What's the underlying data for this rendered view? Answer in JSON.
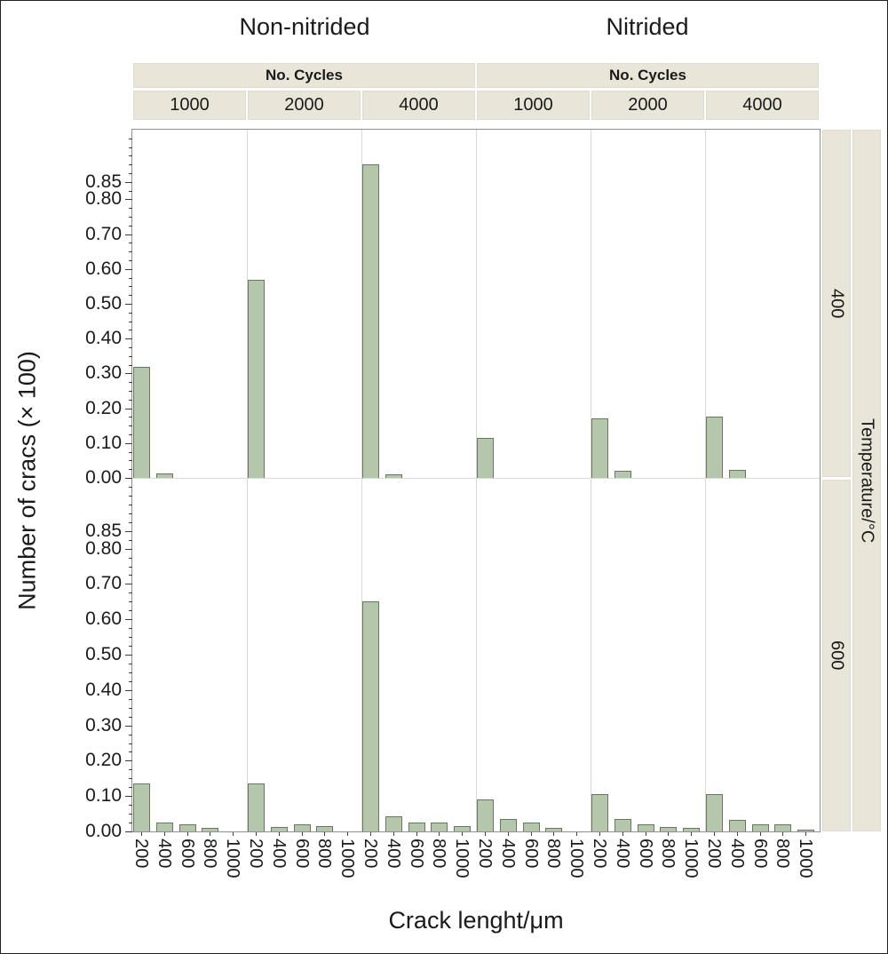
{
  "chart_data": {
    "type": "bar",
    "facet_col_groups": [
      "Non-nitrided",
      "Nitrided"
    ],
    "col_header_label": "No. Cycles",
    "col_subheaders": [
      "1000",
      "2000",
      "4000"
    ],
    "row_facets": [
      "400",
      "600"
    ],
    "row_axis_title": "Temperature/°C",
    "xlabel": "Crack lenght/μm",
    "ylabel": "Number of cracs (× 100)",
    "x_categories": [
      "200",
      "400",
      "600",
      "800",
      "1000"
    ],
    "y_tick_values": [
      0,
      0.1,
      0.2,
      0.3,
      0.4,
      0.5,
      0.6,
      0.7,
      0.8,
      0.85
    ],
    "y_tick_labels": [
      "0.00",
      "0.10",
      "0.20",
      "0.30",
      "0.40",
      "0.50",
      "0.60",
      "0.70",
      "0.80",
      "0.85"
    ],
    "ylim": [
      0,
      1.0
    ],
    "grid": false,
    "panels": [
      {
        "row": "400",
        "group": "Non-nitrided",
        "cycles": "1000",
        "values": [
          0.32,
          0.012,
          0,
          0,
          0
        ]
      },
      {
        "row": "400",
        "group": "Non-nitrided",
        "cycles": "2000",
        "values": [
          0.57,
          0,
          0,
          0,
          0
        ]
      },
      {
        "row": "400",
        "group": "Non-nitrided",
        "cycles": "4000",
        "values": [
          0.9,
          0.01,
          0,
          0,
          0
        ]
      },
      {
        "row": "400",
        "group": "Nitrided",
        "cycles": "1000",
        "values": [
          0.115,
          0,
          0,
          0,
          0
        ]
      },
      {
        "row": "400",
        "group": "Nitrided",
        "cycles": "2000",
        "values": [
          0.17,
          0.02,
          0,
          0,
          0
        ]
      },
      {
        "row": "400",
        "group": "Nitrided",
        "cycles": "4000",
        "values": [
          0.175,
          0.022,
          0,
          0,
          0
        ]
      },
      {
        "row": "600",
        "group": "Non-nitrided",
        "cycles": "1000",
        "values": [
          0.135,
          0.025,
          0.02,
          0.01,
          0
        ]
      },
      {
        "row": "600",
        "group": "Non-nitrided",
        "cycles": "2000",
        "values": [
          0.135,
          0.012,
          0.02,
          0.015,
          0
        ]
      },
      {
        "row": "600",
        "group": "Non-nitrided",
        "cycles": "4000",
        "values": [
          0.65,
          0.042,
          0.025,
          0.025,
          0.015
        ]
      },
      {
        "row": "600",
        "group": "Nitrided",
        "cycles": "1000",
        "values": [
          0.09,
          0.035,
          0.025,
          0.01,
          0
        ]
      },
      {
        "row": "600",
        "group": "Nitrided",
        "cycles": "2000",
        "values": [
          0.105,
          0.035,
          0.02,
          0.012,
          0.01
        ]
      },
      {
        "row": "600",
        "group": "Nitrided",
        "cycles": "4000",
        "values": [
          0.105,
          0.032,
          0.02,
          0.02,
          0.005
        ]
      }
    ]
  },
  "colors": {
    "bar_fill": "#b5c7ab",
    "bar_border": "#68775f",
    "strip_bg": "#e9e5d8",
    "axis_line": "#8f8f8f",
    "grid_line": "#d9d9d9",
    "tick_color": "#3c3c3c",
    "text_color": "#1a1a1a",
    "figure_border": "#222222"
  }
}
